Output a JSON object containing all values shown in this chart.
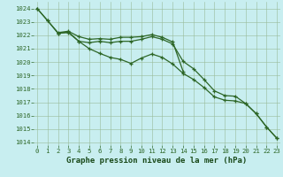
{
  "title": "Graphe pression niveau de la mer (hPa)",
  "x_values": [
    0,
    1,
    2,
    3,
    4,
    5,
    6,
    7,
    8,
    9,
    10,
    11,
    12,
    13,
    14,
    15,
    16,
    17,
    18,
    19,
    20,
    21,
    22,
    23
  ],
  "line_top": [
    1024.0,
    1023.1,
    1022.2,
    1022.3,
    1021.9,
    1021.7,
    1021.75,
    1021.7,
    1021.85,
    1021.85,
    1021.9,
    1022.05,
    1021.85,
    1021.5,
    1019.3,
    null,
    null,
    null,
    null,
    null,
    null,
    null,
    null,
    null
  ],
  "line_mid": [
    null,
    null,
    1022.15,
    1022.25,
    1021.55,
    1021.45,
    1021.55,
    1021.45,
    1021.55,
    1021.55,
    1021.7,
    1021.9,
    1021.7,
    1021.35,
    1020.05,
    1019.5,
    1018.7,
    1017.85,
    1017.5,
    1017.45,
    1016.9,
    1016.15,
    1015.15,
    1014.3
  ],
  "line_bot": [
    1024.0,
    1023.1,
    1022.15,
    1022.2,
    1021.55,
    1021.0,
    1020.65,
    1020.35,
    1020.2,
    1019.9,
    1020.3,
    1020.6,
    1020.35,
    1019.85,
    1019.15,
    1018.7,
    1018.1,
    1017.4,
    1017.15,
    1017.1,
    1016.9,
    1016.15,
    1015.15,
    1014.3
  ],
  "ylim_min": 1013.8,
  "ylim_max": 1024.5,
  "ytick_min": 1014,
  "ytick_max": 1024,
  "xlim_min": -0.3,
  "xlim_max": 23.3,
  "bg_color": "#c8eef0",
  "grid_color": "#99bb99",
  "line_color": "#2d6626",
  "tick_color": "#2d6626",
  "title_color": "#1a4a1a",
  "marker": "+",
  "marker_size": 3.5,
  "linewidth": 0.9,
  "title_fontsize": 6.5,
  "tick_fontsize": 5.2
}
